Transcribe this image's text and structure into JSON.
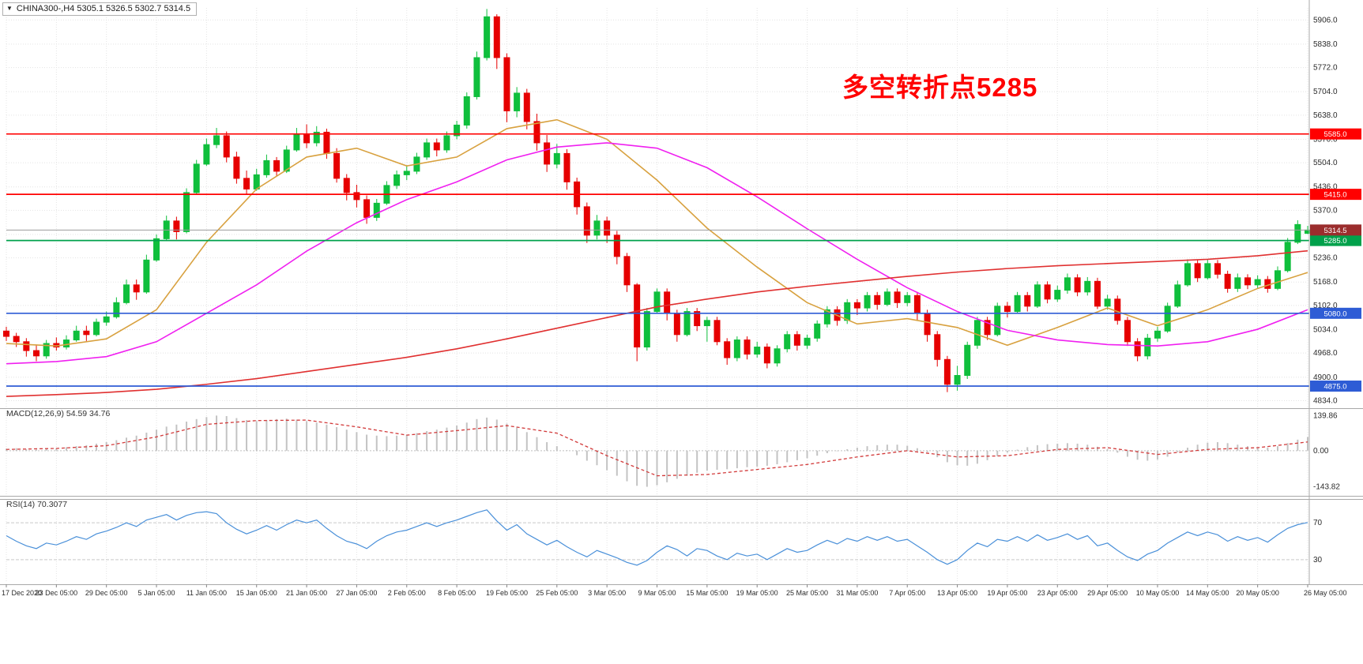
{
  "header": {
    "dropdown_icon": "▼",
    "symbol_title": "CHINA300-,H4 5305.1 5326.5 5302.7 5314.5"
  },
  "annotation": {
    "text": "多空转折点5285",
    "color": "#ff0000"
  },
  "panels": {
    "macd_label": "MACD(12,26,9) 54.59 34.76",
    "rsi_label": "RSI(14) 70.3077"
  },
  "chart_data": {
    "type": "candlestick",
    "symbol": "CHINA300-",
    "timeframe": "H4",
    "last_values": {
      "open": 5305.1,
      "high": 5326.5,
      "low": 5302.7,
      "close": 5314.5
    },
    "up_color": "#0fbf3c",
    "down_color": "#e60000",
    "price_axis": {
      "min": 4815,
      "max": 5940,
      "ticks": [
        5906,
        5838,
        5772,
        5704,
        5638,
        5570,
        5504,
        5436,
        5370,
        5302,
        5236,
        5168,
        5102,
        5034,
        4968,
        4900,
        4834
      ]
    },
    "time_labels": [
      "17 Dec 2020",
      "23 Dec 05:00",
      "29 Dec 05:00",
      "5 Jan 05:00",
      "11 Jan 05:00",
      "15 Jan 05:00",
      "21 Jan 05:00",
      "27 Jan 05:00",
      "2 Feb 05:00",
      "8 Feb 05:00",
      "19 Feb 05:00",
      "25 Feb 05:00",
      "3 Mar 05:00",
      "9 Mar 05:00",
      "15 Mar 05:00",
      "19 Mar 05:00",
      "25 Mar 05:00",
      "31 Mar 05:00",
      "7 Apr 05:00",
      "13 Apr 05:00",
      "19 Apr 05:00",
      "23 Apr 05:00",
      "29 Apr 05:00",
      "10 May 05:00",
      "14 May 05:00",
      "20 May 05:00",
      "26 May 05:00"
    ],
    "candles_per_label_gap": 5,
    "candles": [
      [
        5030,
        5042,
        5002,
        5015
      ],
      [
        5015,
        5025,
        4985,
        5000
      ],
      [
        5000,
        5010,
        4958,
        4975
      ],
      [
        4975,
        4992,
        4945,
        4960
      ],
      [
        4960,
        5005,
        4952,
        4995
      ],
      [
        4995,
        5012,
        4975,
        4985
      ],
      [
        4985,
        5018,
        4978,
        5005
      ],
      [
        5005,
        5045,
        5000,
        5030
      ],
      [
        5030,
        5045,
        5002,
        5020
      ],
      [
        5020,
        5065,
        5015,
        5055
      ],
      [
        5055,
        5085,
        5045,
        5070
      ],
      [
        5070,
        5125,
        5065,
        5110
      ],
      [
        5110,
        5175,
        5105,
        5160
      ],
      [
        5160,
        5175,
        5118,
        5140
      ],
      [
        5140,
        5245,
        5135,
        5230
      ],
      [
        5230,
        5302,
        5225,
        5290
      ],
      [
        5290,
        5355,
        5285,
        5340
      ],
      [
        5340,
        5352,
        5288,
        5310
      ],
      [
        5310,
        5432,
        5305,
        5420
      ],
      [
        5420,
        5512,
        5415,
        5500
      ],
      [
        5500,
        5572,
        5495,
        5555
      ],
      [
        5555,
        5602,
        5545,
        5580
      ],
      [
        5580,
        5592,
        5505,
        5520
      ],
      [
        5520,
        5535,
        5445,
        5460
      ],
      [
        5460,
        5482,
        5415,
        5430
      ],
      [
        5430,
        5487,
        5425,
        5470
      ],
      [
        5470,
        5527,
        5462,
        5510
      ],
      [
        5510,
        5520,
        5465,
        5480
      ],
      [
        5480,
        5552,
        5475,
        5540
      ],
      [
        5540,
        5602,
        5535,
        5585
      ],
      [
        5585,
        5612,
        5545,
        5560
      ],
      [
        5560,
        5607,
        5550,
        5590
      ],
      [
        5590,
        5600,
        5515,
        5530
      ],
      [
        5530,
        5545,
        5448,
        5460
      ],
      [
        5460,
        5472,
        5398,
        5420
      ],
      [
        5420,
        5442,
        5378,
        5400
      ],
      [
        5400,
        5412,
        5332,
        5350
      ],
      [
        5350,
        5402,
        5340,
        5390
      ],
      [
        5390,
        5452,
        5385,
        5440
      ],
      [
        5440,
        5482,
        5430,
        5470
      ],
      [
        5470,
        5497,
        5455,
        5480
      ],
      [
        5480,
        5532,
        5472,
        5520
      ],
      [
        5520,
        5572,
        5512,
        5560
      ],
      [
        5560,
        5572,
        5522,
        5540
      ],
      [
        5540,
        5592,
        5532,
        5580
      ],
      [
        5580,
        5622,
        5570,
        5610
      ],
      [
        5610,
        5702,
        5600,
        5690
      ],
      [
        5690,
        5817,
        5682,
        5800
      ],
      [
        5800,
        5937,
        5792,
        5915
      ],
      [
        5915,
        5922,
        5768,
        5800
      ],
      [
        5800,
        5812,
        5618,
        5650
      ],
      [
        5650,
        5717,
        5632,
        5700
      ],
      [
        5700,
        5712,
        5598,
        5620
      ],
      [
        5620,
        5642,
        5538,
        5560
      ],
      [
        5560,
        5582,
        5478,
        5500
      ],
      [
        5500,
        5557,
        5488,
        5530
      ],
      [
        5530,
        5542,
        5428,
        5450
      ],
      [
        5450,
        5462,
        5358,
        5380
      ],
      [
        5380,
        5392,
        5278,
        5300
      ],
      [
        5300,
        5357,
        5288,
        5340
      ],
      [
        5340,
        5352,
        5278,
        5300
      ],
      [
        5300,
        5312,
        5218,
        5240
      ],
      [
        5240,
        5250,
        5140,
        5160
      ],
      [
        5160,
        5165,
        4945,
        4985
      ],
      [
        4985,
        5095,
        4975,
        5085
      ],
      [
        5085,
        5150,
        5080,
        5140
      ],
      [
        5140,
        5150,
        5060,
        5080
      ],
      [
        5080,
        5090,
        5000,
        5020
      ],
      [
        5020,
        5095,
        5015,
        5085
      ],
      [
        5085,
        5095,
        5030,
        5045
      ],
      [
        5045,
        5070,
        5000,
        5060
      ],
      [
        5060,
        5070,
        4990,
        5000
      ],
      [
        5000,
        5010,
        4935,
        4955
      ],
      [
        4955,
        5015,
        4945,
        5005
      ],
      [
        5005,
        5015,
        4950,
        4965
      ],
      [
        4965,
        5000,
        4955,
        4985
      ],
      [
        4985,
        4995,
        4925,
        4940
      ],
      [
        4940,
        4990,
        4930,
        4980
      ],
      [
        4980,
        5030,
        4970,
        5020
      ],
      [
        5020,
        5030,
        4975,
        4990
      ],
      [
        4990,
        5020,
        4980,
        5010
      ],
      [
        5010,
        5060,
        5000,
        5050
      ],
      [
        5050,
        5100,
        5040,
        5090
      ],
      [
        5090,
        5100,
        5045,
        5060
      ],
      [
        5060,
        5120,
        5050,
        5110
      ],
      [
        5110,
        5120,
        5075,
        5095
      ],
      [
        5095,
        5140,
        5085,
        5130
      ],
      [
        5130,
        5140,
        5090,
        5105
      ],
      [
        5105,
        5150,
        5100,
        5140
      ],
      [
        5140,
        5150,
        5095,
        5110
      ],
      [
        5110,
        5140,
        5100,
        5130
      ],
      [
        5130,
        5140,
        5060,
        5080
      ],
      [
        5080,
        5090,
        5000,
        5020
      ],
      [
        5020,
        5030,
        4930,
        4950
      ],
      [
        4950,
        4960,
        4858,
        4880
      ],
      [
        4880,
        4932,
        4862,
        4905
      ],
      [
        4905,
        5000,
        4895,
        4990
      ],
      [
        4990,
        5070,
        4980,
        5060
      ],
      [
        5060,
        5070,
        5005,
        5020
      ],
      [
        5020,
        5110,
        5015,
        5100
      ],
      [
        5100,
        5112,
        5068,
        5085
      ],
      [
        5085,
        5140,
        5080,
        5130
      ],
      [
        5130,
        5140,
        5085,
        5100
      ],
      [
        5100,
        5170,
        5095,
        5160
      ],
      [
        5160,
        5170,
        5108,
        5120
      ],
      [
        5120,
        5158,
        5112,
        5145
      ],
      [
        5145,
        5192,
        5135,
        5180
      ],
      [
        5180,
        5190,
        5128,
        5140
      ],
      [
        5140,
        5182,
        5130,
        5170
      ],
      [
        5170,
        5180,
        5092,
        5100
      ],
      [
        5100,
        5132,
        5090,
        5120
      ],
      [
        5120,
        5130,
        5048,
        5060
      ],
      [
        5060,
        5070,
        4988,
        5000
      ],
      [
        5000,
        5010,
        4945,
        4960
      ],
      [
        4960,
        5022,
        4950,
        5010
      ],
      [
        5010,
        5042,
        5000,
        5030
      ],
      [
        5030,
        5110,
        5025,
        5100
      ],
      [
        5100,
        5172,
        5095,
        5160
      ],
      [
        5160,
        5232,
        5155,
        5220
      ],
      [
        5220,
        5232,
        5168,
        5180
      ],
      [
        5180,
        5232,
        5175,
        5220
      ],
      [
        5220,
        5230,
        5178,
        5190
      ],
      [
        5190,
        5200,
        5138,
        5150
      ],
      [
        5150,
        5192,
        5140,
        5180
      ],
      [
        5180,
        5190,
        5148,
        5160
      ],
      [
        5160,
        5187,
        5150,
        5175
      ],
      [
        5175,
        5185,
        5138,
        5150
      ],
      [
        5150,
        5212,
        5145,
        5200
      ],
      [
        5200,
        5292,
        5195,
        5280
      ],
      [
        5280,
        5342,
        5275,
        5330
      ],
      [
        5305.1,
        5326.5,
        5302.7,
        5314.5
      ]
    ],
    "moving_averages": [
      {
        "name": "fast-ma",
        "color": "#d8a13f",
        "values": [
          4995,
          4988,
          5008,
          5090,
          5280,
          5430,
          5520,
          5545,
          5495,
          5520,
          5600,
          5625,
          5570,
          5455,
          5320,
          5210,
          5110,
          5050,
          5065,
          5040,
          4990,
          5040,
          5095,
          5045,
          5090,
          5150,
          5195
        ]
      },
      {
        "name": "mid-ma",
        "color": "#f020f0",
        "values": [
          4938,
          4944,
          4958,
          5000,
          5080,
          5160,
          5255,
          5335,
          5400,
          5450,
          5512,
          5548,
          5560,
          5545,
          5490,
          5408,
          5318,
          5232,
          5152,
          5085,
          5032,
          5005,
          4992,
          4988,
          5000,
          5035,
          5090
        ]
      },
      {
        "name": "slow-ma",
        "color": "#e03030",
        "values": [
          4846,
          4851,
          4857,
          4866,
          4880,
          4896,
          4916,
          4936,
          4956,
          4980,
          5008,
          5038,
          5068,
          5098,
          5120,
          5140,
          5156,
          5170,
          5184,
          5196,
          5206,
          5214,
          5220,
          5226,
          5232,
          5242,
          5256
        ]
      }
    ],
    "h_lines": [
      {
        "price": 5585.0,
        "color": "#ff0000",
        "label": "5585.0"
      },
      {
        "price": 5415.0,
        "color": "#ff0000",
        "label": "5415.0"
      },
      {
        "price": 5285.0,
        "color": "#00a14b",
        "label": "5285.0"
      },
      {
        "price": 5080.0,
        "color": "#2e5cd5",
        "label": "5080.0"
      },
      {
        "price": 4875.0,
        "color": "#2e5cd5",
        "label": "4875.0"
      }
    ],
    "current_price": {
      "price": 5314.5,
      "line_color": "#9b9b9b",
      "box_color": "#9b2d2d",
      "label": "5314.5"
    },
    "macd": {
      "axis_ticks": [
        139.86,
        0,
        -143.82
      ],
      "range": [
        -180,
        160
      ],
      "histogram_color": "#c3c3c3",
      "signal_color": "#d23b3b",
      "histogram": [
        8,
        10,
        6,
        4,
        8,
        10,
        14,
        18,
        22,
        28,
        34,
        42,
        52,
        60,
        72,
        84,
        96,
        104,
        116,
        126,
        134,
        140,
        138,
        130,
        122,
        118,
        122,
        126,
        128,
        124,
        118,
        112,
        104,
        94,
        84,
        74,
        64,
        60,
        58,
        60,
        64,
        70,
        78,
        84,
        92,
        100,
        112,
        126,
        132,
        124,
        108,
        92,
        74,
        54,
        34,
        18,
        2,
        -18,
        -40,
        -58,
        -78,
        -100,
        -122,
        -140,
        -144,
        -138,
        -126,
        -112,
        -100,
        -88,
        -80,
        -76,
        -74,
        -70,
        -66,
        -64,
        -60,
        -54,
        -46,
        -38,
        -30,
        -20,
        -10,
        -2,
        6,
        12,
        18,
        22,
        24,
        24,
        20,
        10,
        -6,
        -26,
        -46,
        -58,
        -60,
        -52,
        -38,
        -22,
        -8,
        4,
        14,
        22,
        26,
        28,
        30,
        28,
        24,
        16,
        6,
        -8,
        -24,
        -36,
        -40,
        -36,
        -24,
        -6,
        12,
        24,
        32,
        34,
        30,
        24,
        18,
        14,
        12,
        18,
        30,
        44,
        54.59
      ],
      "signal": [
        5,
        9,
        20,
        55,
        105,
        120,
        122,
        95,
        62,
        80,
        100,
        70,
        -20,
        -100,
        -95,
        -75,
        -55,
        -25,
        0,
        -25,
        -20,
        5,
        12,
        -15,
        5,
        12,
        34.76
      ]
    },
    "rsi": {
      "levels": [
        70,
        30
      ],
      "range": [
        5,
        95
      ],
      "line_color": "#4a90d9",
      "level_color": "#c9c9c9",
      "values": [
        56,
        50,
        45,
        42,
        48,
        46,
        50,
        55,
        52,
        58,
        61,
        65,
        70,
        66,
        73,
        76,
        79,
        73,
        78,
        81,
        82,
        80,
        70,
        63,
        58,
        62,
        67,
        62,
        68,
        73,
        70,
        73,
        64,
        56,
        50,
        47,
        42,
        50,
        56,
        60,
        62,
        66,
        70,
        66,
        70,
        73,
        77,
        81,
        84,
        72,
        62,
        68,
        58,
        52,
        46,
        51,
        44,
        38,
        33,
        40,
        36,
        32,
        27,
        24,
        29,
        38,
        45,
        41,
        34,
        42,
        40,
        34,
        30,
        37,
        34,
        36,
        30,
        36,
        42,
        38,
        40,
        46,
        51,
        47,
        53,
        50,
        55,
        51,
        55,
        50,
        52,
        45,
        38,
        30,
        25,
        30,
        40,
        48,
        44,
        52,
        50,
        55,
        50,
        57,
        51,
        54,
        58,
        52,
        56,
        45,
        48,
        40,
        33,
        29,
        36,
        40,
        48,
        54,
        60,
        56,
        60,
        57,
        50,
        55,
        51,
        54,
        49,
        57,
        64,
        68,
        70.31
      ]
    }
  }
}
